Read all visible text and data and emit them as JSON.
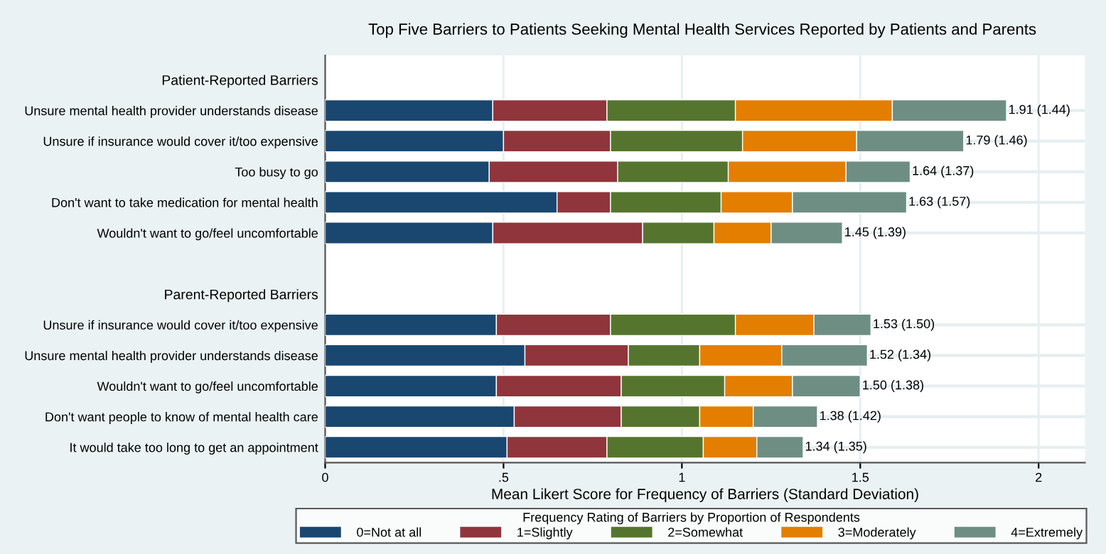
{
  "chart_data": {
    "type": "bar",
    "orientation": "horizontal",
    "stacked": true,
    "title": "Top Five Barriers to Patients Seeking Mental Health Services Reported by Patients and Parents",
    "xlabel": "Mean Likert Score for Frequency of Barriers (Standard Deviation)",
    "legend_title": "Frequency Rating of Barriers by Proportion of Respondents",
    "categories": [
      "Patient-Reported Barriers",
      "Unsure mental health provider understands disease",
      "Unsure if insurance would cover it/too expensive",
      "Too busy to go",
      "Don't want to take medication for mental health",
      "Wouldn't want to go/feel uncomfortable",
      null,
      "Parent-Reported Barriers",
      "Unsure if insurance would cover it/too expensive",
      "Unsure mental health provider understands disease",
      "Wouldn't want to go/feel uncomfortable",
      "Don't want people to know of mental health care",
      "It would take too long to get an appointment"
    ],
    "series": [
      {
        "name": "0=Not at all",
        "color": "#1a476f",
        "values": [
          null,
          0.47,
          0.5,
          0.46,
          0.65,
          0.47,
          null,
          null,
          0.48,
          0.56,
          0.48,
          0.53,
          0.51
        ]
      },
      {
        "name": "1=Slightly",
        "color": "#90353b",
        "values": [
          null,
          0.32,
          0.3,
          0.36,
          0.15,
          0.42,
          null,
          null,
          0.32,
          0.29,
          0.35,
          0.3,
          0.28
        ]
      },
      {
        "name": "2=Somewhat",
        "color": "#55752f",
        "values": [
          null,
          0.36,
          0.37,
          0.31,
          0.31,
          0.2,
          null,
          null,
          0.35,
          0.2,
          0.29,
          0.22,
          0.27
        ]
      },
      {
        "name": "3=Moderately",
        "color": "#e37e00",
        "values": [
          null,
          0.44,
          0.32,
          0.33,
          0.2,
          0.16,
          null,
          null,
          0.22,
          0.23,
          0.19,
          0.15,
          0.15
        ]
      },
      {
        "name": "4=Extremely",
        "color": "#6e8e84",
        "values": [
          null,
          0.32,
          0.3,
          0.18,
          0.32,
          0.2,
          null,
          null,
          0.16,
          0.24,
          0.19,
          0.18,
          0.13
        ]
      }
    ],
    "totals": [
      null,
      "1.91 (1.44)",
      "1.79 (1.46)",
      "1.64 (1.37)",
      "1.63 (1.57)",
      "1.45 (1.39)",
      null,
      null,
      "1.53 (1.50)",
      "1.52 (1.34)",
      "1.50 (1.38)",
      "1.38 (1.42)",
      "1.34 (1.35)"
    ],
    "xlim": [
      0,
      2.13
    ],
    "xticks": [
      0,
      {
        "value": 0.5,
        "label": ".5"
      },
      1,
      1.5,
      2
    ],
    "grid": true,
    "legend": "bottom"
  }
}
